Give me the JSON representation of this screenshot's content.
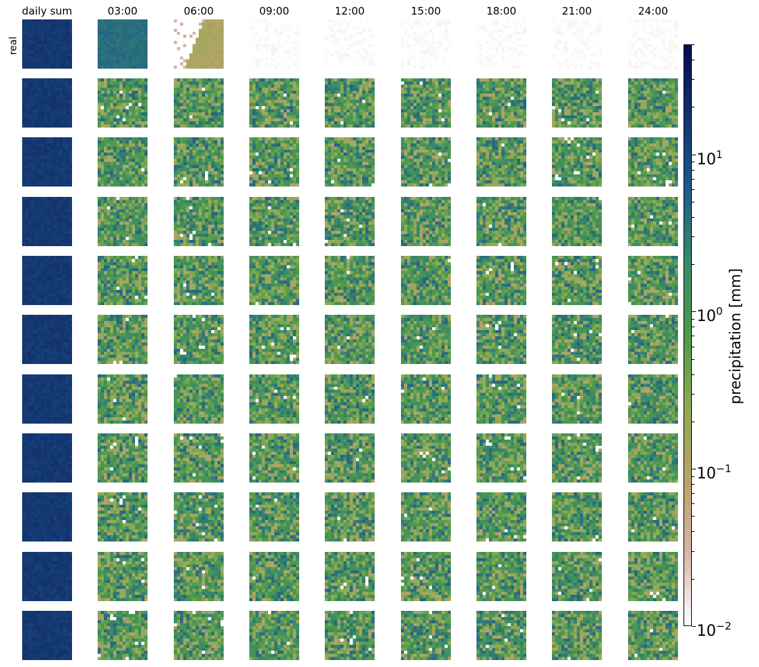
{
  "chart_data": {
    "type": "heatmap",
    "title": "",
    "column_titles": [
      "daily sum",
      "03:00",
      "06:00",
      "09:00",
      "12:00",
      "15:00",
      "18:00",
      "21:00",
      "24:00"
    ],
    "row_labels": [
      "real",
      "",
      "",
      "",
      "",
      "",
      "",
      "",
      "",
      "",
      ""
    ],
    "n_rows": 11,
    "grid_cells_per_tile": 16,
    "colormap": "gist_earth_r",
    "colormap_stops": [
      "#ffffff",
      "#d9b4a8",
      "#b9a36a",
      "#8eaa55",
      "#4d9a4a",
      "#3a8a6a",
      "#1f5c8a",
      "#13336e",
      "#0a0a50"
    ],
    "colorbar": {
      "label": "precipitation [mm]",
      "scale": "log",
      "range": [
        0.01,
        50
      ],
      "ticks": [
        {
          "value": 0.01,
          "base": "10",
          "exp": "−2"
        },
        {
          "value": 0.1,
          "base": "10",
          "exp": "−1"
        },
        {
          "value": 1,
          "base": "10",
          "exp": "0"
        },
        {
          "value": 10,
          "base": "10",
          "exp": "1"
        }
      ]
    },
    "real_row_approx_values": {
      "daily sum": 15,
      "03:00": 4,
      "06:00": 0.1,
      "09:00": 0.01,
      "12:00": 0.01,
      "15:00": 0.01,
      "18:00": 0.01,
      "21:00": 0.01,
      "24:00": 0.01
    },
    "generated_rows_typical_range": [
      0.02,
      5
    ],
    "generated_daily_sum_approx": 15
  }
}
